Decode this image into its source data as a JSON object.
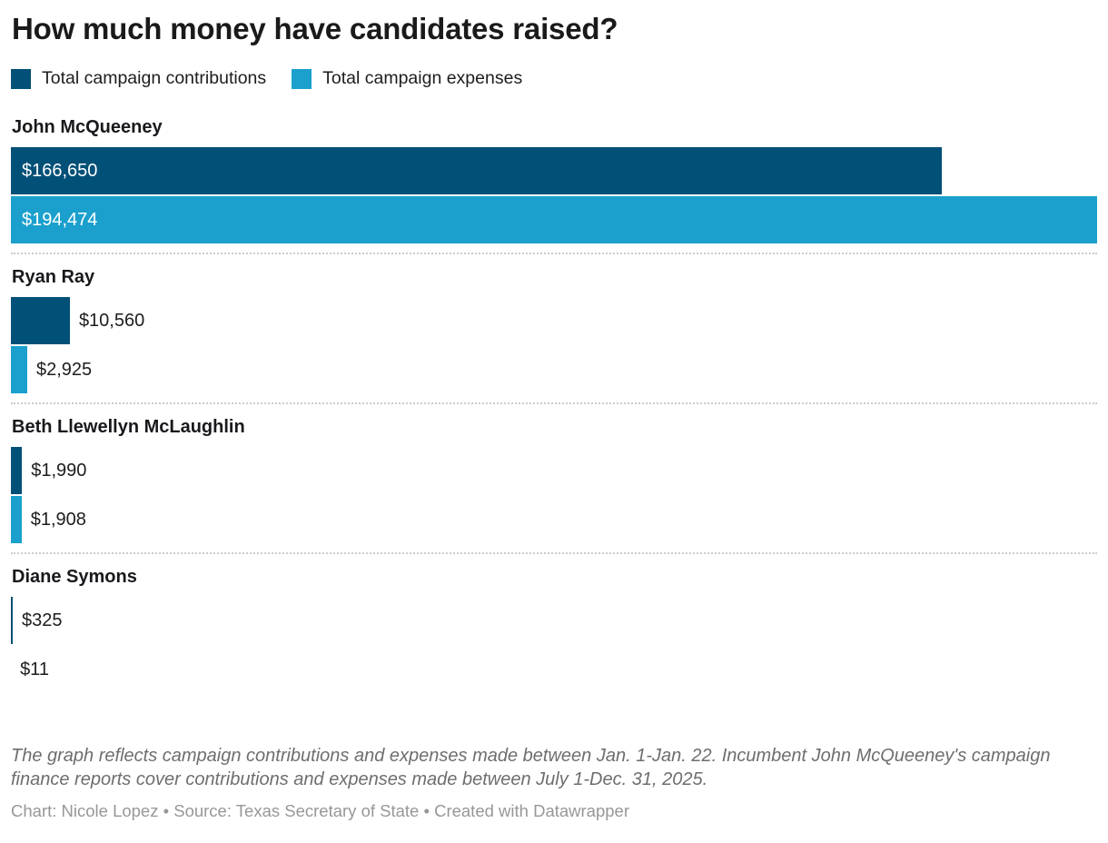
{
  "header": {
    "title": "How much money have candidates raised?"
  },
  "legend": [
    {
      "label": "Total campaign contributions",
      "color": "#015077"
    },
    {
      "label": "Total campaign expenses",
      "color": "#1BA0CD"
    }
  ],
  "chart_data": {
    "type": "bar",
    "orientation": "horizontal",
    "title": "How much money have candidates raised?",
    "categories": [
      "John McQueeney",
      "Ryan Ray",
      "Beth Llewellyn McLaughlin",
      "Diane Symons"
    ],
    "series": [
      {
        "name": "Total campaign contributions",
        "color": "#015077",
        "values": [
          166650,
          10560,
          1990,
          325
        ],
        "labels": [
          "$166,650",
          "$10,560",
          "$1,990",
          "$325"
        ]
      },
      {
        "name": "Total campaign expenses",
        "color": "#1BA0CD",
        "values": [
          194474,
          2925,
          1908,
          11
        ],
        "labels": [
          "$194,474",
          "$2,925",
          "$1,908",
          "$11"
        ]
      }
    ],
    "xmax": 194474,
    "grid": false,
    "legend_position": "top",
    "value_labels": "inside-if-fits"
  },
  "footer": {
    "note": "The graph reflects campaign contributions and expenses made between Jan. 1-Jan. 22. Incumbent John McQueeney's campaign finance reports cover contributions and expenses made between July 1-Dec. 31, 2025.",
    "credit": "Chart: Nicole Lopez • Source: Texas Secretary of State • Created with Datawrapper"
  }
}
